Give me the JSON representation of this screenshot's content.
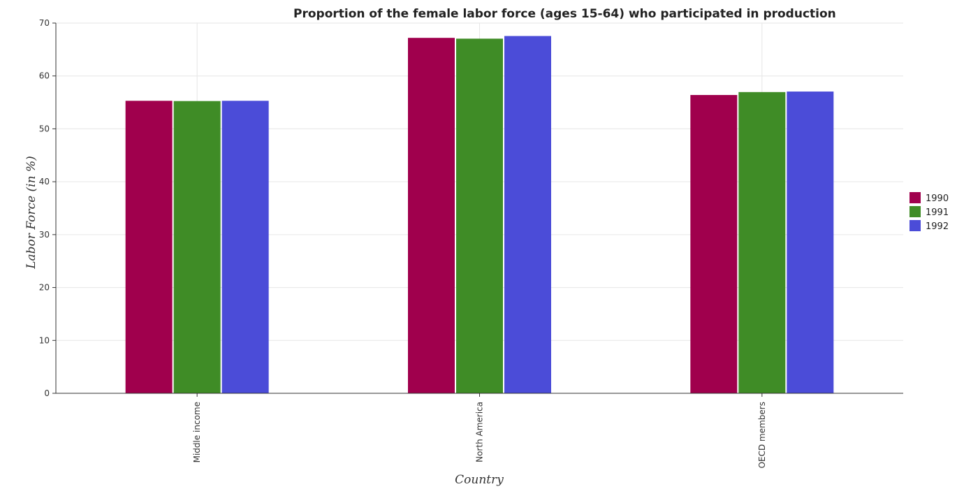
{
  "chart_data": {
    "type": "bar",
    "title": "Proportion of the female labor force (ages 15-64) who participated in production",
    "xlabel": "Country",
    "ylabel": "Labor Force (in %)",
    "categories": [
      "Middle income",
      "North America",
      "OECD members"
    ],
    "series": [
      {
        "name": "1990",
        "color": "#a0004d",
        "values": [
          55.3,
          67.2,
          56.4
        ]
      },
      {
        "name": "1991",
        "color": "#3f8c26",
        "values": [
          55.25,
          67.05,
          56.95
        ]
      },
      {
        "name": "1992",
        "color": "#4b4cd8",
        "values": [
          55.3,
          67.55,
          57.05
        ]
      }
    ],
    "ylim": [
      0,
      70
    ],
    "yticks": [
      0,
      10,
      20,
      30,
      40,
      50,
      60,
      70
    ],
    "grid": true,
    "legend_position": "right"
  }
}
